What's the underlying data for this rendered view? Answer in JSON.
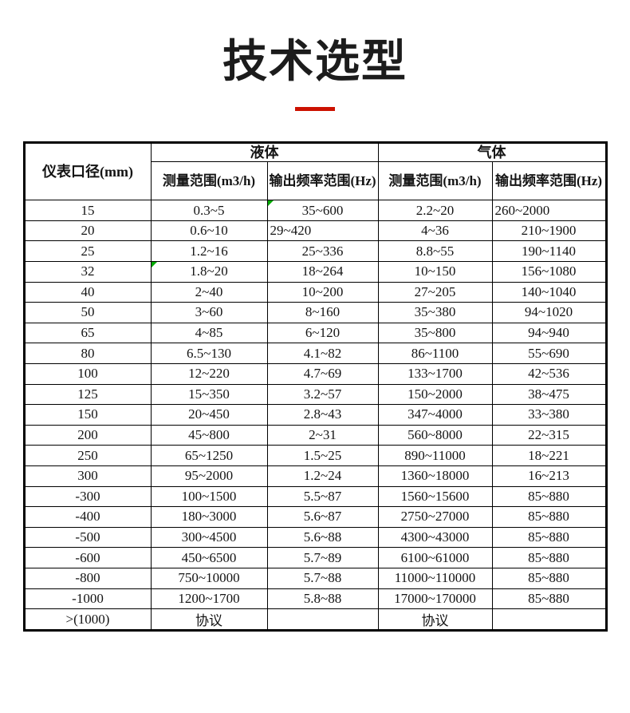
{
  "page": {
    "title": "技术选型",
    "accent_color": "#cc1100"
  },
  "table": {
    "col1_header": "仪表口径(mm)",
    "group_headers": [
      {
        "label": "液体"
      },
      {
        "label": "气体"
      }
    ],
    "sub_headers": [
      "测量范围(m3/h)",
      "输出频率范围(Hz)",
      "测量范围(m3/h)",
      "输出频率范围(Hz)"
    ],
    "rows": [
      {
        "cells": [
          "15",
          "0.3~5",
          "35~600",
          "2.2~20",
          "260~2000"
        ]
      },
      {
        "cells": [
          "20",
          "0.6~10",
          "29~420",
          "4~36",
          "210~1900"
        ]
      },
      {
        "cells": [
          "25",
          "1.2~16",
          "25~336",
          "8.8~55",
          "190~1140"
        ]
      },
      {
        "cells": [
          "32",
          "1.8~20",
          "18~264",
          "10~150",
          "156~1080"
        ]
      },
      {
        "cells": [
          "40",
          "2~40",
          "10~200",
          "27~205",
          "140~1040"
        ]
      },
      {
        "cells": [
          "50",
          "3~60",
          "8~160",
          "35~380",
          "94~1020"
        ]
      },
      {
        "cells": [
          "65",
          "4~85",
          "6~120",
          "35~800",
          "94~940"
        ]
      },
      {
        "cells": [
          "80",
          "6.5~130",
          "4.1~82",
          "86~1100",
          "55~690"
        ]
      },
      {
        "cells": [
          "100",
          "12~220",
          "4.7~69",
          "133~1700",
          "42~536"
        ]
      },
      {
        "cells": [
          "125",
          "15~350",
          "3.2~57",
          "150~2000",
          "38~475"
        ]
      },
      {
        "cells": [
          "150",
          "20~450",
          "2.8~43",
          "347~4000",
          "33~380"
        ]
      },
      {
        "cells": [
          "200",
          "45~800",
          "2~31",
          "560~8000",
          "22~315"
        ]
      },
      {
        "cells": [
          "250",
          "65~1250",
          "1.5~25",
          "890~11000",
          "18~221"
        ]
      },
      {
        "cells": [
          "300",
          "95~2000",
          "1.2~24",
          "1360~18000",
          "16~213"
        ]
      },
      {
        "cells": [
          "-300",
          "100~1500",
          "5.5~87",
          "1560~15600",
          "85~880"
        ]
      },
      {
        "cells": [
          "-400",
          "180~3000",
          "5.6~87",
          "2750~27000",
          "85~880"
        ]
      },
      {
        "cells": [
          "-500",
          "300~4500",
          "5.6~88",
          "4300~43000",
          "85~880"
        ]
      },
      {
        "cells": [
          "-600",
          "450~6500",
          "5.7~89",
          "6100~61000",
          "85~880"
        ]
      },
      {
        "cells": [
          "-800",
          "750~10000",
          "5.7~88",
          "11000~110000",
          "85~880"
        ]
      },
      {
        "cells": [
          "-1000",
          "1200~1700",
          "5.8~88",
          "17000~170000",
          "85~880"
        ]
      },
      {
        "cells": [
          ">(1000)",
          "协议",
          "",
          "协议",
          ""
        ]
      }
    ],
    "triangle_cells": [
      [
        0,
        2
      ],
      [
        3,
        1
      ]
    ],
    "left_aligned_cells": [
      [
        0,
        4
      ],
      [
        1,
        2
      ]
    ]
  }
}
